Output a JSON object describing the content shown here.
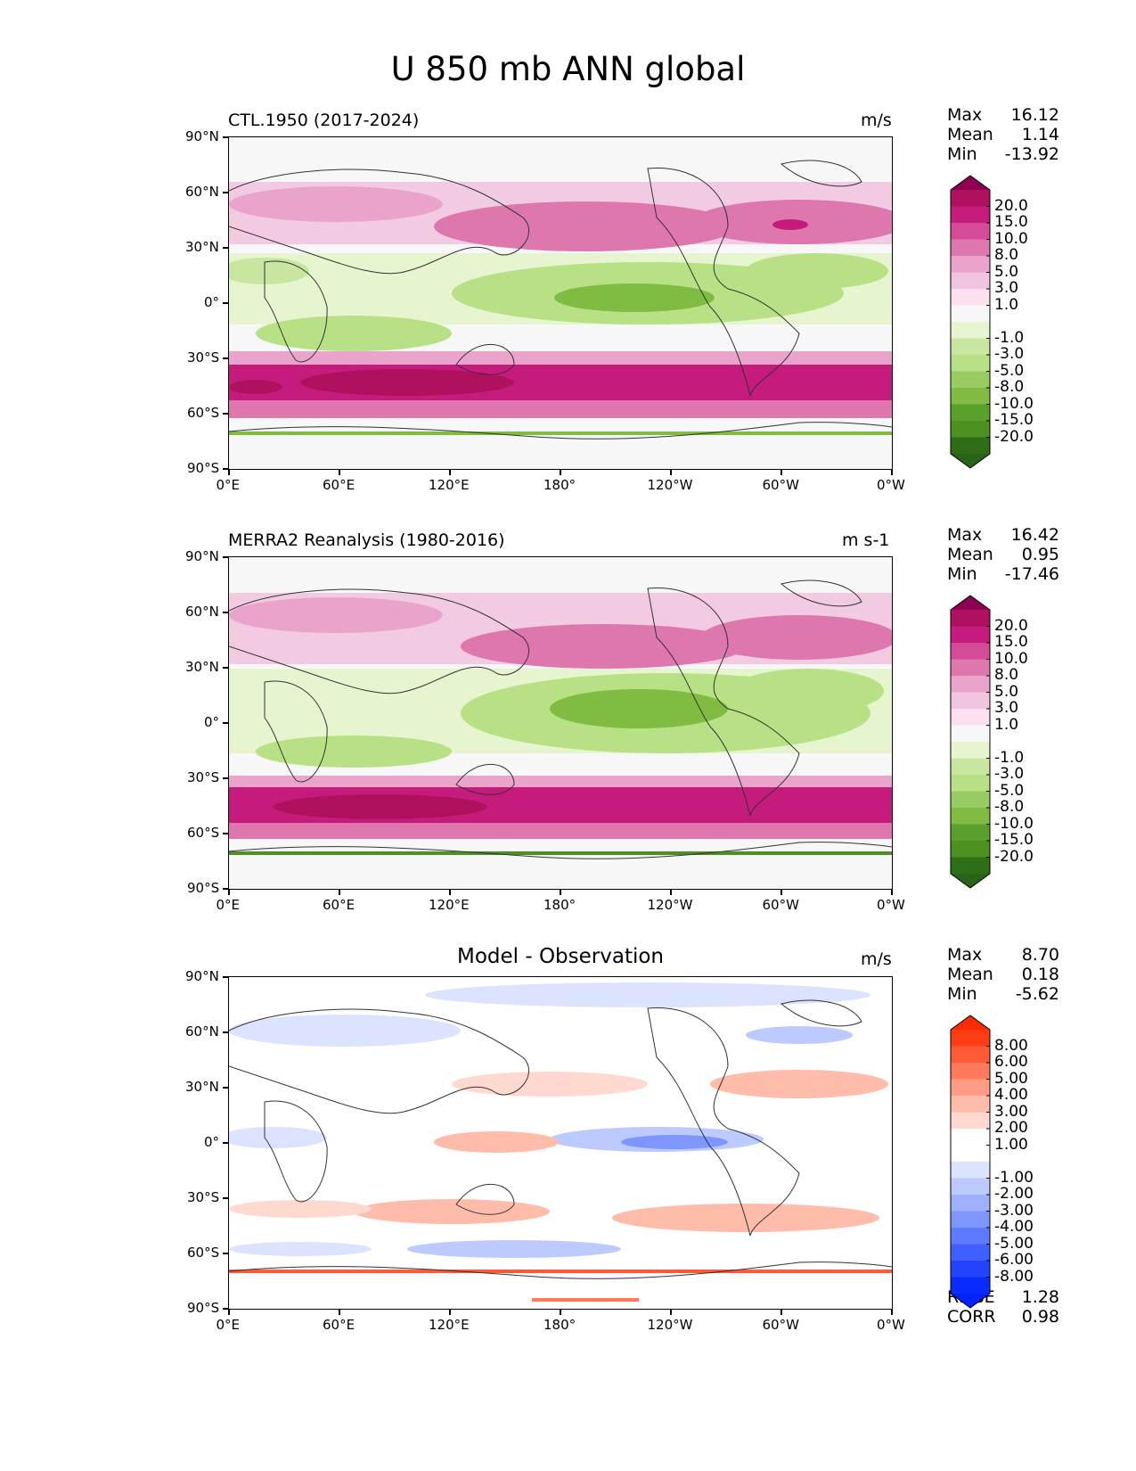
{
  "title": "U 850 mb ANN global",
  "x_ticks": [
    "0°E",
    "60°E",
    "120°E",
    "180°",
    "120°W",
    "60°W",
    "0°W"
  ],
  "y_ticks": [
    "90°N",
    "60°N",
    "30°N",
    "0°",
    "30°S",
    "60°S",
    "90°S"
  ],
  "panels": [
    {
      "title": "CTL.1950 (2017-2024)",
      "units": "m/s",
      "stats": [
        {
          "label": "Max",
          "value": "16.12"
        },
        {
          "label": "Mean",
          "value": "1.14"
        },
        {
          "label": "Min",
          "value": "-13.92"
        }
      ],
      "colorbar": {
        "labels": [
          "20.0",
          "15.0",
          "10.0",
          "8.0",
          "5.0",
          "3.0",
          "1.0",
          "-1.0",
          "-3.0",
          "-5.0",
          "-8.0",
          "-10.0",
          "-15.0",
          "-20.0"
        ],
        "colors": [
          "#8e0152",
          "#b0115f",
          "#c51b7d",
          "#d54b98",
          "#de77ae",
          "#eaa4cc",
          "#f1c5df",
          "#fde0ef",
          "#f7f7f7",
          "#e6f5d0",
          "#c8e6a0",
          "#b8e186",
          "#98cc63",
          "#7fbc41",
          "#5aa02c",
          "#4d9221",
          "#2f6d17",
          "#276419"
        ]
      }
    },
    {
      "title": "MERRA2 Reanalysis (1980-2016)",
      "units": "m s-1",
      "stats": [
        {
          "label": "Max",
          "value": "16.42"
        },
        {
          "label": "Mean",
          "value": "0.95"
        },
        {
          "label": "Min",
          "value": "-17.46"
        }
      ],
      "colorbar": {
        "labels": [
          "20.0",
          "15.0",
          "10.0",
          "8.0",
          "5.0",
          "3.0",
          "1.0",
          "-1.0",
          "-3.0",
          "-5.0",
          "-8.0",
          "-10.0",
          "-15.0",
          "-20.0"
        ],
        "colors": [
          "#8e0152",
          "#b0115f",
          "#c51b7d",
          "#d54b98",
          "#de77ae",
          "#eaa4cc",
          "#f1c5df",
          "#fde0ef",
          "#f7f7f7",
          "#e6f5d0",
          "#c8e6a0",
          "#b8e186",
          "#98cc63",
          "#7fbc41",
          "#5aa02c",
          "#4d9221",
          "#2f6d17",
          "#276419"
        ]
      }
    },
    {
      "title": "Model - Observation",
      "units": "m/s",
      "stats": [
        {
          "label": "Max",
          "value": "8.70"
        },
        {
          "label": "Mean",
          "value": "0.18"
        },
        {
          "label": "Min",
          "value": "-5.62"
        }
      ],
      "extra_stats": [
        {
          "label": "RMSE",
          "value": "1.28"
        },
        {
          "label": "CORR",
          "value": "0.98"
        }
      ],
      "colorbar": {
        "labels": [
          "8.00",
          "6.00",
          "5.00",
          "4.00",
          "3.00",
          "2.00",
          "1.00",
          "-1.00",
          "-2.00",
          "-3.00",
          "-4.00",
          "-5.00",
          "-6.00",
          "-8.00"
        ],
        "colors": [
          "#ff2a00",
          "#ff3d14",
          "#ff5a36",
          "#ff7a5c",
          "#ff9c85",
          "#ffbcab",
          "#ffd9cf",
          "#ffffff",
          "#ffffff",
          "#dbe3ff",
          "#bccaff",
          "#9fb0ff",
          "#8096ff",
          "#5e7bff",
          "#3f5fff",
          "#2244ff",
          "#0a2bff",
          "#0022ff"
        ]
      }
    }
  ]
}
